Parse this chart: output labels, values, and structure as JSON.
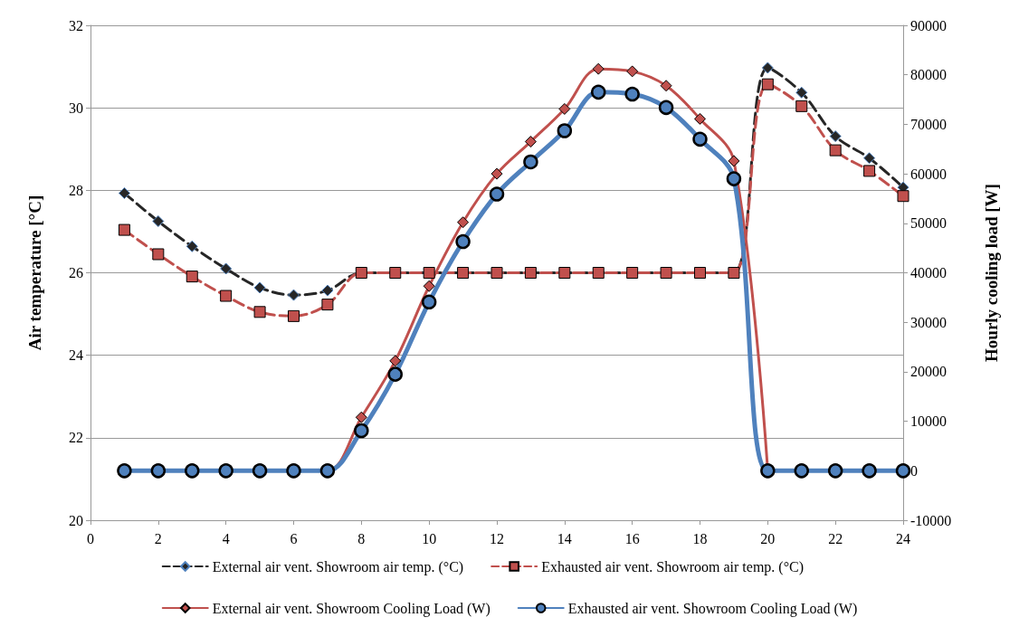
{
  "chart_data": {
    "type": "line",
    "xlabel": null,
    "ylabel": "Air temperature [°C]",
    "y2label": "Hourly cooling load [W]",
    "x": [
      1,
      2,
      3,
      4,
      5,
      6,
      7,
      8,
      9,
      10,
      11,
      12,
      13,
      14,
      15,
      16,
      17,
      18,
      19,
      20,
      21,
      22,
      23,
      24
    ],
    "xlim": [
      0,
      24
    ],
    "xticks": [
      0,
      2,
      4,
      6,
      8,
      10,
      12,
      14,
      16,
      18,
      20,
      22,
      24
    ],
    "ylim": [
      20,
      32
    ],
    "yticks": [
      20,
      22,
      24,
      26,
      28,
      30,
      32
    ],
    "y2lim": [
      -10000,
      90000
    ],
    "y2ticks": [
      -10000,
      0,
      10000,
      20000,
      30000,
      40000,
      50000,
      60000,
      70000,
      80000,
      90000
    ],
    "grid": "y",
    "legend": "bottom",
    "series": [
      {
        "name": "External air vent. Showroom air temp. (°C)",
        "color": "#262626",
        "marker": "diamond",
        "line_style": "dashed",
        "values": [
          27.93,
          27.25,
          26.64,
          26.1,
          25.64,
          25.46,
          25.57,
          26,
          26,
          26,
          26,
          26,
          26,
          26,
          26,
          26,
          26,
          26,
          26,
          30.97,
          30.37,
          29.31,
          28.78,
          28.07
        ]
      },
      {
        "name": "Exhausted air vent. Showroom air temp. (°C)",
        "color": "#c0504d",
        "marker": "square",
        "line_style": "dashed",
        "values": [
          27.04,
          26.45,
          25.91,
          25.44,
          25.05,
          24.95,
          25.23,
          26,
          26,
          26,
          26,
          26,
          26,
          26,
          26,
          26,
          26,
          26,
          26,
          30.57,
          30.04,
          28.97,
          28.47,
          27.86
        ]
      },
      {
        "name": "External air vent. Showroom Cooling Load (W)",
        "color": "#c0504d",
        "marker": "diamond",
        "line_style": "solid",
        "axis": "y2",
        "values": [
          null,
          null,
          null,
          null,
          null,
          0,
          0,
          10800,
          22200,
          37300,
          50200,
          60000,
          66500,
          73100,
          81200,
          80700,
          77800,
          71100,
          62600,
          0,
          null,
          null,
          null,
          null
        ]
      },
      {
        "name": "Exhausted air vent. Showroom Cooling Load (W)",
        "color": "#4f81bd",
        "marker": "circle",
        "line_style": "solid",
        "axis": "y2",
        "values": [
          0,
          0,
          0,
          0,
          0,
          0,
          0,
          8100,
          19500,
          34100,
          46300,
          55900,
          62400,
          68700,
          76500,
          76100,
          73400,
          67000,
          59000,
          0,
          0,
          0,
          0,
          0
        ]
      }
    ]
  }
}
